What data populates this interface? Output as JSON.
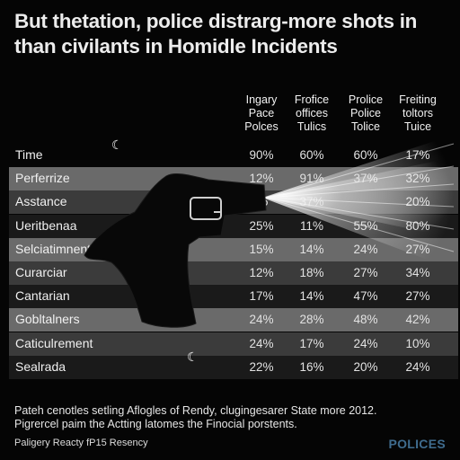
{
  "chart_data": {
    "type": "table",
    "title_lines": [
      "But thetation, police distrarg-more shots in",
      "than civilants in Homidle Incidents"
    ],
    "columns": [
      {
        "lines": [
          "Ingary",
          "Pace",
          "Polces"
        ]
      },
      {
        "lines": [
          "Frofice",
          "offices",
          "Tulics"
        ]
      },
      {
        "lines": [
          "Prolice",
          "Police",
          "Tolice"
        ]
      },
      {
        "lines": [
          "Freiting",
          "toltors",
          "Tuice"
        ]
      }
    ],
    "rows": [
      {
        "label": "Time",
        "values": [
          "90%",
          "60%",
          "60%",
          "17%"
        ]
      },
      {
        "label": "Perferrize",
        "values": [
          "12%",
          "91%",
          "37%",
          "32%"
        ]
      },
      {
        "label": "Asstance",
        "values": [
          "85",
          "37%",
          "",
          "20%"
        ]
      },
      {
        "label": "Ueritbenaa",
        "values": [
          "25%",
          "11%",
          "55%",
          "80%"
        ]
      },
      {
        "label": "Selciatimnent",
        "values": [
          "15%",
          "14%",
          "24%",
          "27%"
        ]
      },
      {
        "label": "Curarciar",
        "values": [
          "12%",
          "18%",
          "27%",
          "34%"
        ]
      },
      {
        "label": "Cantarian",
        "values": [
          "17%",
          "14%",
          "47%",
          "27%"
        ]
      },
      {
        "label": "Gobltalners",
        "values": [
          "24%",
          "28%",
          "48%",
          "42%"
        ]
      },
      {
        "label": "Caticulrement",
        "values": [
          "24%",
          "17%",
          "24%",
          "10%"
        ]
      },
      {
        "label": "Sealrada",
        "values": [
          "22%",
          "16%",
          "20%",
          "24%"
        ]
      }
    ]
  },
  "notes": [
    "Pateh cenotles setling Aflogles of Rendy, clugingesarer State more 2012.",
    "Pigrercel paim the Actting latomes the Finocial porstents."
  ],
  "source": "Paligery Reacty fP15 Resency",
  "brand": "POLICES",
  "colors": {
    "background": "#050505",
    "row_light": "#6a6a6a",
    "row_mid": "#3b3b3b",
    "row_dark": "#1a1a1a",
    "brand": "#3f6c8e",
    "silhouette": "#080808"
  }
}
